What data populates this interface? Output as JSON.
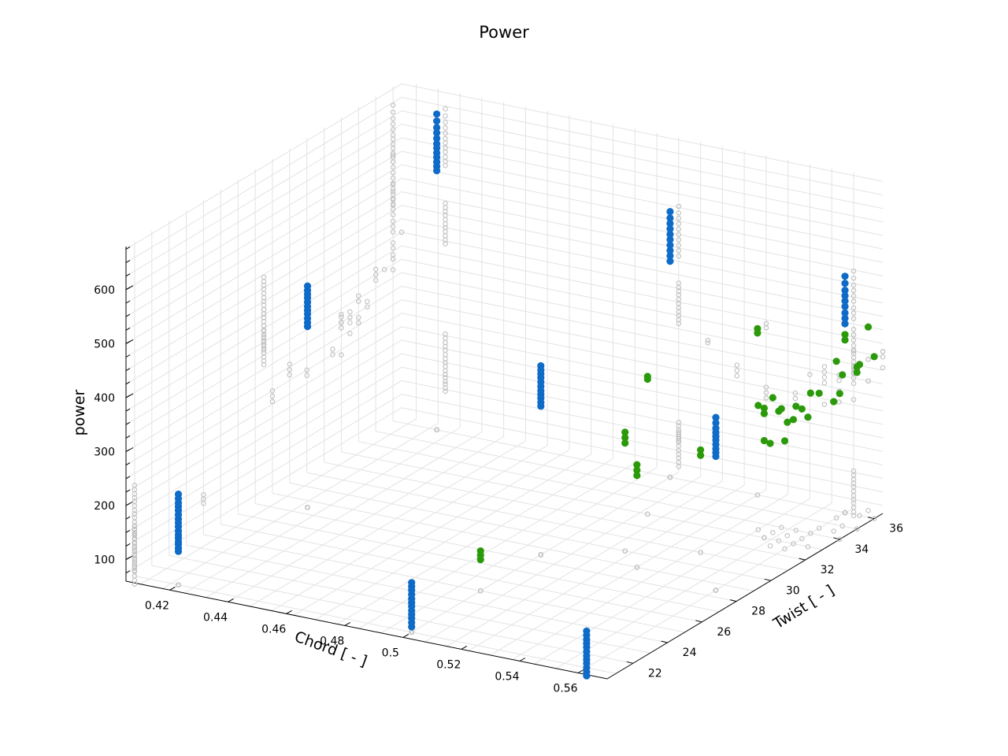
{
  "chart_data": {
    "type": "scatter3d",
    "title": "Power",
    "xlabel": "Chord [ - ]",
    "ylabel": "Twist [ - ]",
    "zlabel": "power",
    "xlim": [
      0.405,
      0.57
    ],
    "ylim": [
      20.5,
      36.5
    ],
    "zlim": [
      60,
      680
    ],
    "xticks": [
      0.42,
      0.44,
      0.46,
      0.48,
      0.5,
      0.52,
      0.54,
      0.56
    ],
    "xtick_labels": [
      "0.42",
      "0.44",
      "0.46",
      "0.48",
      "0.5",
      "0.52",
      "0.54",
      "0.56"
    ],
    "yticks": [
      22,
      24,
      26,
      28,
      30,
      32,
      34,
      36
    ],
    "ytick_labels": [
      "22",
      "24",
      "26",
      "28",
      "30",
      "32",
      "34",
      "36"
    ],
    "zticks": [
      100,
      200,
      300,
      400,
      500,
      600
    ],
    "ztick_labels": [
      "100",
      "200",
      "300",
      "400",
      "500",
      "600"
    ],
    "grid": true,
    "colors": {
      "blue": "#0f6bc8",
      "green": "#2a9a0a",
      "projection": "#c0c0c0"
    },
    "series": [
      {
        "marker": "filled-circle",
        "color": "#0f6bc8",
        "columns": [
          {
            "x": 0.42,
            "y": 21.0,
            "z": [
              122,
              128,
              135,
              140,
              147,
              153,
              160,
              168,
              175,
              182,
              190,
              198,
              205,
              212,
              220,
              228
            ]
          },
          {
            "x": 0.5,
            "y": 21.0,
            "z": [
              70,
              78,
              86,
              93,
              100,
              108,
              115,
              122,
              130,
              138,
              145,
              152
            ]
          },
          {
            "x": 0.56,
            "y": 21.0,
            "z": [
              45,
              52,
              60,
              68,
              75,
              82,
              90,
              98,
              105,
              112,
              120,
              128
            ]
          },
          {
            "x": 0.42,
            "y": 28.5,
            "z": [
              395,
              402,
              410,
              418,
              425,
              432,
              440,
              448,
              455,
              462,
              470
            ]
          },
          {
            "x": 0.5,
            "y": 28.5,
            "z": [
              335,
              342,
              350,
              357,
              364,
              372,
              380,
              388,
              395,
              402,
              410
            ]
          },
          {
            "x": 0.56,
            "y": 28.5,
            "z": [
              308,
              315,
              322,
              330,
              338,
              345,
              352,
              360,
              370,
              380
            ]
          },
          {
            "x": 0.42,
            "y": 36.0,
            "z": [
              540,
              548,
              556,
              565,
              573,
              582,
              590,
              600,
              610,
              620,
              632,
              645
            ]
          },
          {
            "x": 0.5,
            "y": 36.0,
            "z": [
              460,
              470,
              480,
              490,
              500,
              510,
              520,
              530,
              540,
              552
            ]
          },
          {
            "x": 0.56,
            "y": 36.0,
            "z": [
              410,
              420,
              430,
              442,
              452,
              462,
              472,
              485,
              498
            ]
          }
        ]
      },
      {
        "marker": "filled-circle",
        "color": "#2a9a0a",
        "points": [
          [
            0.5,
            25.0,
            118
          ],
          [
            0.5,
            25.0,
            126
          ],
          [
            0.5,
            25.0,
            134
          ],
          [
            0.52,
            30.0,
            260
          ],
          [
            0.52,
            30.0,
            270
          ],
          [
            0.52,
            30.0,
            280
          ],
          [
            0.53,
            29.0,
            230
          ],
          [
            0.53,
            29.0,
            240
          ],
          [
            0.53,
            29.0,
            250
          ],
          [
            0.54,
            31.0,
            240
          ],
          [
            0.54,
            31.0,
            250
          ],
          [
            0.51,
            33.0,
            310
          ],
          [
            0.51,
            33.0,
            315
          ],
          [
            0.53,
            36.0,
            360
          ],
          [
            0.53,
            36.0,
            368
          ],
          [
            0.55,
            33.0,
            290
          ],
          [
            0.55,
            33.0,
            300
          ],
          [
            0.56,
            33.5,
            300
          ],
          [
            0.56,
            34.5,
            310
          ],
          [
            0.555,
            34.0,
            290
          ],
          [
            0.565,
            34.5,
            300
          ],
          [
            0.555,
            33.0,
            300
          ],
          [
            0.56,
            33.0,
            290
          ],
          [
            0.55,
            33.5,
            310
          ],
          [
            0.56,
            34.0,
            320
          ],
          [
            0.545,
            33.5,
            290
          ],
          [
            0.55,
            34.0,
            280
          ],
          [
            0.555,
            33.5,
            270
          ],
          [
            0.56,
            32.5,
            260
          ],
          [
            0.565,
            33.0,
            300
          ],
          [
            0.57,
            34.0,
            330
          ],
          [
            0.565,
            35.0,
            340
          ],
          [
            0.55,
            33.0,
            240
          ],
          [
            0.555,
            32.5,
            250
          ],
          [
            0.56,
            36.0,
            380
          ],
          [
            0.56,
            36.0,
            390
          ],
          [
            0.565,
            36.5,
            400
          ],
          [
            0.57,
            36.0,
            360
          ],
          [
            0.57,
            35.0,
            350
          ],
          [
            0.57,
            35.0,
            360
          ],
          [
            0.56,
            35.5,
            350
          ],
          [
            0.565,
            36.0,
            340
          ]
        ]
      }
    ]
  }
}
